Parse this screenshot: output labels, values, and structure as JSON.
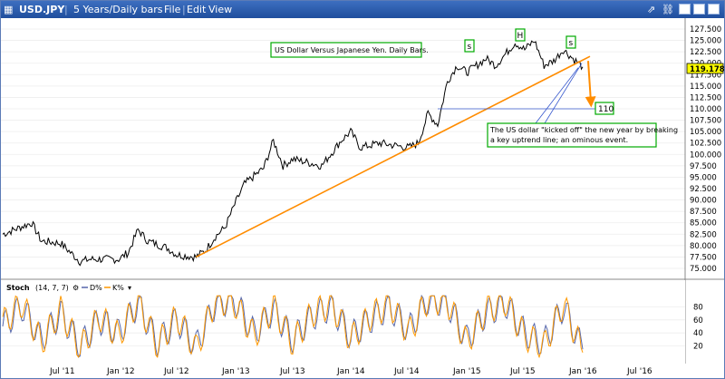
{
  "window": {
    "symbol": "USD.JPY",
    "period": "5 Years/Daily bars",
    "menu": [
      "File",
      "Edit",
      "View"
    ]
  },
  "annotations": {
    "title_box": "US Dollar Versus Japanese Yen. Daily Bars.",
    "note_box": "The US dollar \"kicked off\" the new year by breaking a key uptrend line; an ominous event.",
    "target_box": "110",
    "pattern_left": "s",
    "pattern_head": "H",
    "pattern_right": "s"
  },
  "price_axis": {
    "ticks": [
      "127.500",
      "125.000",
      "122.500",
      "120.000",
      "117.500",
      "115.000",
      "112.500",
      "110.000",
      "107.500",
      "105.000",
      "102.500",
      "100.000",
      "97.500",
      "95.000",
      "92.500",
      "90.000",
      "87.500",
      "85.000",
      "82.500",
      "80.000",
      "77.500",
      "75.000"
    ],
    "last_price": "119.178"
  },
  "stoch": {
    "label": "Stoch",
    "params": "(14, 7, 7)",
    "d_label": "D%",
    "k_label": "K%",
    "ticks": [
      "80",
      "60",
      "40",
      "20"
    ]
  },
  "x_axis": {
    "labels": [
      "Jul '11",
      "Jan '12",
      "Jul '12",
      "Jan '13",
      "Jul '13",
      "Jan '14",
      "Jul '14",
      "Jan '15",
      "Jul '15",
      "Jan '16",
      "Jul '16"
    ]
  },
  "colors": {
    "price_line": "#000000",
    "trendline": "#ff8c00",
    "target_line": "#3355cc",
    "box_border": "#00aa00",
    "d_line": "#5566aa",
    "k_line": "#ff9900",
    "last_price_bg": "#ffff00"
  },
  "chart_data": [
    {
      "type": "line",
      "title": "US Dollar Versus Japanese Yen. Daily Bars.",
      "ylim": [
        73.5,
        128.5
      ],
      "x": [
        "2011-01",
        "2011-04",
        "2011-05",
        "2011-07",
        "2011-09",
        "2011-10",
        "2012-01",
        "2012-02",
        "2012-03",
        "2012-04",
        "2012-06",
        "2012-07",
        "2012-09",
        "2012-10",
        "2012-11",
        "2012-12",
        "2013-01",
        "2013-02",
        "2013-04",
        "2013-05",
        "2013-06",
        "2013-07",
        "2013-09",
        "2013-10",
        "2013-12",
        "2014-01",
        "2014-02",
        "2014-04",
        "2014-06",
        "2014-07",
        "2014-08",
        "2014-09",
        "2014-10",
        "2014-11",
        "2014-12",
        "2015-01",
        "2015-03",
        "2015-04",
        "2015-06",
        "2015-07",
        "2015-08",
        "2015-09",
        "2015-10",
        "2015-11",
        "2015-12",
        "2016-01"
      ],
      "series": [
        {
          "values": [
            82.5,
            85.0,
            81.0,
            80.5,
            76.5,
            77.0,
            77.0,
            78.5,
            83.5,
            81.0,
            79.5,
            78.0,
            77.5,
            79.0,
            82.0,
            84.0,
            89.0,
            93.5,
            97.0,
            103.0,
            97.5,
            99.0,
            98.0,
            97.5,
            103.0,
            105.0,
            101.5,
            102.5,
            101.8,
            101.5,
            102.5,
            109.0,
            106.5,
            116.0,
            119.5,
            118.0,
            121.0,
            119.5,
            124.5,
            123.0,
            125.0,
            119.5,
            120.5,
            123.0,
            121.0,
            119.2
          ]
        }
      ]
    },
    {
      "type": "line",
      "x": [
        "2011-01",
        "2011-03",
        "2011-05",
        "2011-07",
        "2011-09",
        "2011-11",
        "2012-01",
        "2012-03",
        "2012-05",
        "2012-07",
        "2012-09",
        "2012-11",
        "2013-01",
        "2013-03",
        "2013-05",
        "2013-07",
        "2013-09",
        "2013-11",
        "2014-01",
        "2014-03",
        "2014-05",
        "2014-07",
        "2014-09",
        "2014-11",
        "2015-01",
        "2015-03",
        "2015-05",
        "2015-07",
        "2015-09",
        "2015-11",
        "2016-01"
      ],
      "ylim": [
        0,
        100
      ],
      "series": [
        {
          "name": "D%",
          "values": [
            50,
            80,
            30,
            70,
            20,
            60,
            40,
            85,
            25,
            60,
            20,
            85,
            90,
            40,
            75,
            30,
            65,
            80,
            35,
            60,
            80,
            45,
            90,
            85,
            30,
            70,
            85,
            40,
            25,
            80,
            15
          ]
        },
        {
          "name": "K%",
          "values": [
            55,
            85,
            25,
            75,
            15,
            65,
            35,
            90,
            20,
            65,
            15,
            90,
            85,
            35,
            80,
            25,
            70,
            85,
            30,
            65,
            85,
            40,
            92,
            88,
            25,
            75,
            88,
            35,
            20,
            85,
            10
          ]
        }
      ]
    }
  ]
}
